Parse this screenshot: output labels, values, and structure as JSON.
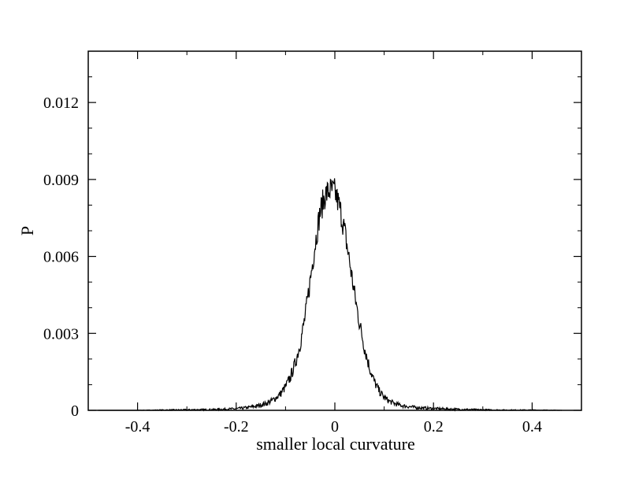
{
  "chart_data": {
    "type": "line",
    "title": "",
    "xlabel": "smaller local curvature",
    "ylabel": "P",
    "xlim": [
      -0.5,
      0.5
    ],
    "ylim": [
      0,
      0.014
    ],
    "grid": false,
    "legend": "none",
    "x_ticks": [
      -0.4,
      -0.2,
      0,
      0.2,
      0.4
    ],
    "x_tick_labels": [
      "-0.4",
      "-0.2",
      "0",
      "0.2",
      "0.4"
    ],
    "y_ticks": [
      0,
      0.003,
      0.006,
      0.009,
      0.012
    ],
    "y_tick_labels": [
      "0",
      "0.003",
      "0.006",
      "0.009",
      "0.012"
    ],
    "line_color": "#000000",
    "series": [
      {
        "x": [
          -0.48,
          -0.4,
          -0.35,
          -0.3,
          -0.25,
          -0.2,
          -0.18,
          -0.16,
          -0.14,
          -0.13,
          -0.12,
          -0.11,
          -0.1,
          -0.09,
          -0.08,
          -0.07,
          -0.06,
          -0.05,
          -0.04,
          -0.03,
          -0.02,
          -0.01,
          0,
          0.01,
          0.02,
          0.03,
          0.04,
          0.05,
          0.06,
          0.07,
          0.08,
          0.09,
          0.1,
          0.11,
          0.12,
          0.13,
          0.14,
          0.16,
          0.18,
          0.2,
          0.25,
          0.3,
          0.35,
          0.4,
          0.46
        ],
        "y": [
          0,
          0,
          1e-05,
          2e-05,
          3e-05,
          6e-05,
          0.0001,
          0.00016,
          0.00026,
          0.00035,
          0.00048,
          0.00065,
          0.00092,
          0.0013,
          0.00185,
          0.00262,
          0.00368,
          0.00506,
          0.00648,
          0.00772,
          0.00838,
          0.00858,
          0.00852,
          0.0079,
          0.00698,
          0.00578,
          0.00452,
          0.0034,
          0.00245,
          0.00168,
          0.00112,
          0.00075,
          0.0005,
          0.00036,
          0.00027,
          0.00021,
          0.00017,
          0.00012,
          9e-05,
          7e-05,
          4e-05,
          2e-05,
          1e-05,
          1e-05,
          0
        ]
      }
    ]
  }
}
